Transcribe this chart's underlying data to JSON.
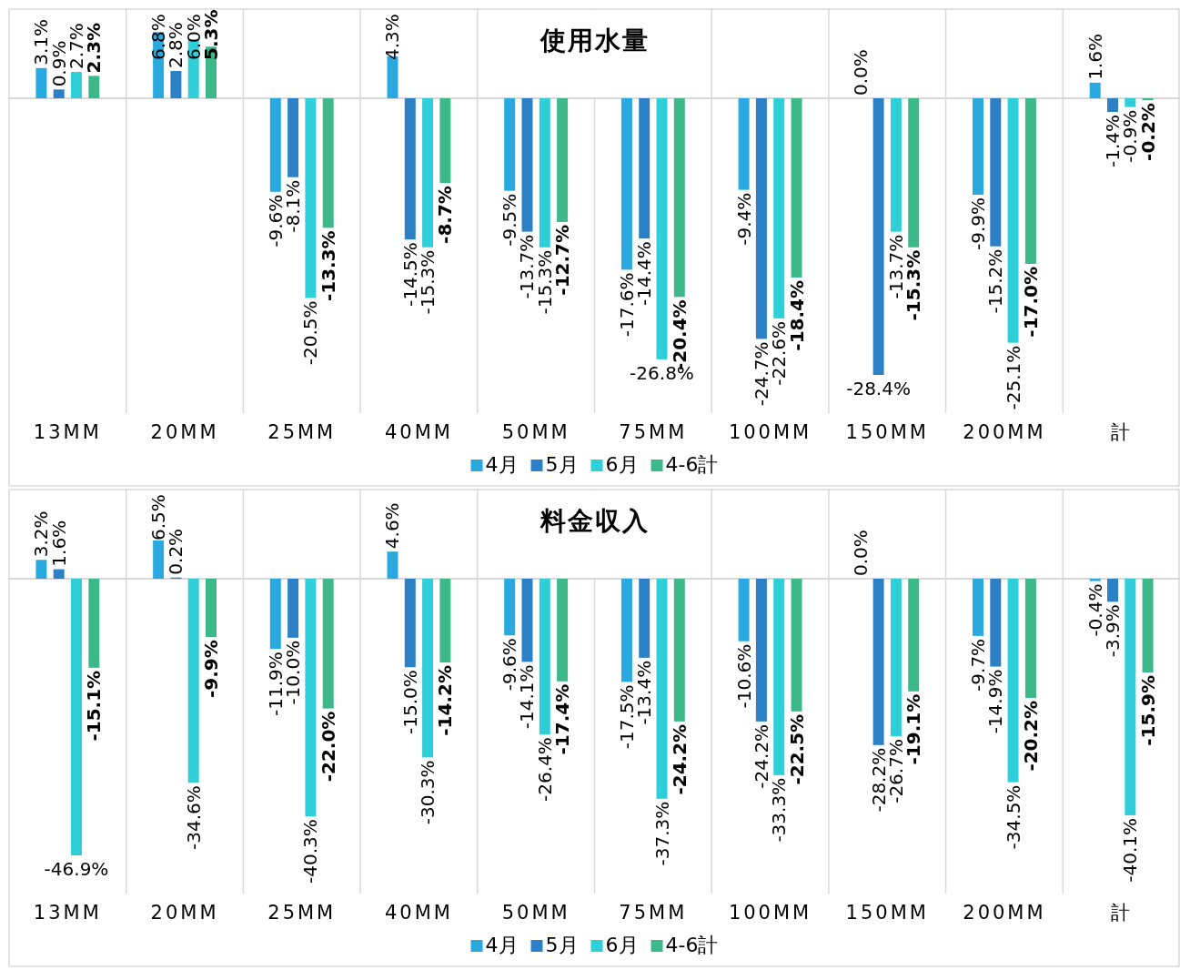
{
  "chart_data": [
    {
      "type": "bar",
      "title": "使用水量",
      "categories": [
        "13MM",
        "20MM",
        "25MM",
        "40MM",
        "50MM",
        "75MM",
        "100MM",
        "150MM",
        "200MM",
        "計"
      ],
      "legend": "bottom",
      "grid": "x",
      "data_labels": false,
      "series": [
        {
          "name": "4月",
          "color": "#29a9e0",
          "values": [
            3.1,
            6.8,
            -9.6,
            4.3,
            -9.5,
            -17.6,
            -9.4,
            0.0,
            -9.9,
            1.6
          ],
          "value_labels": [
            "3.1%",
            "6.8%",
            "-9.6%",
            "4.3%",
            "-9.5%",
            "-17.6%",
            "-9.4%",
            "0.0%",
            "-9.9%",
            "1.6%"
          ]
        },
        {
          "name": "5月",
          "color": "#2b80c6",
          "values": [
            0.9,
            2.8,
            -8.1,
            -14.5,
            -13.7,
            -14.4,
            -24.7,
            -28.4,
            -15.2,
            -1.4
          ],
          "value_labels": [
            "0.9%",
            "2.8%",
            "-8.1%",
            "-14.5%",
            "-13.7%",
            "-14.4%",
            "-24.7%",
            "-28.4%",
            "-15.2%",
            "-1.4%"
          ]
        },
        {
          "name": "6月",
          "color": "#2ecfd8",
          "values": [
            2.7,
            6.0,
            -20.5,
            -15.3,
            -15.3,
            -26.8,
            -22.6,
            -13.7,
            -25.1,
            -0.9
          ],
          "value_labels": [
            "2.7%",
            "6.0%",
            "-20.5%",
            "-15.3%",
            "-15.3%",
            "-26.8%",
            "-22.6%",
            "-13.7%",
            "-25.1%",
            "-0.9%"
          ]
        },
        {
          "name": "4-6計",
          "color": "#3db88a",
          "values": [
            2.3,
            5.3,
            -13.3,
            -8.7,
            -12.7,
            -20.4,
            -18.4,
            -15.3,
            -17.0,
            -0.2
          ],
          "value_labels": [
            "2.3%",
            "5.3%",
            "-13.3%",
            "-8.7%",
            "-12.7%",
            "-20.4%",
            "-18.4%",
            "-15.3%",
            "-17.0%",
            "-0.2%"
          ]
        }
      ]
    },
    {
      "type": "bar",
      "title": "料金収入",
      "categories": [
        "13MM",
        "20MM",
        "25MM",
        "40MM",
        "50MM",
        "75MM",
        "100MM",
        "150MM",
        "200MM",
        "計"
      ],
      "legend": "bottom",
      "grid": "x",
      "data_labels": false,
      "series": [
        {
          "name": "4月",
          "color": "#29a9e0",
          "values": [
            3.2,
            6.5,
            -11.9,
            4.6,
            -9.6,
            -17.5,
            -10.6,
            0.0,
            -9.7,
            -0.4
          ],
          "value_labels": [
            "3.2%",
            "6.5%",
            "-11.9%",
            "4.6%",
            "-9.6%",
            "-17.5%",
            "-10.6%",
            "0.0%",
            "-9.7%",
            "-0.4%"
          ]
        },
        {
          "name": "5月",
          "color": "#2b80c6",
          "values": [
            1.6,
            0.2,
            -10.0,
            -15.0,
            -14.1,
            -13.4,
            -24.2,
            -28.2,
            -14.9,
            -3.9
          ],
          "value_labels": [
            "1.6%",
            "0.2%",
            "-10.0%",
            "-15.0%",
            "-14.1%",
            "-13.4%",
            "-24.2%",
            "-28.2%",
            "-14.9%",
            "-3.9%"
          ]
        },
        {
          "name": "6月",
          "color": "#2ecfd8",
          "values": [
            -46.9,
            -34.6,
            -40.3,
            -30.3,
            -26.4,
            -37.3,
            -33.3,
            -26.7,
            -34.5,
            -40.1
          ],
          "value_labels": [
            "-46.9%",
            "-34.6%",
            "-40.3%",
            "-30.3%",
            "-26.4%",
            "-37.3%",
            "-33.3%",
            "-26.7%",
            "-34.5%",
            "-40.1%"
          ]
        },
        {
          "name": "4-6計",
          "color": "#3db88a",
          "values": [
            -15.1,
            -9.9,
            -22.0,
            -14.2,
            -17.4,
            -24.2,
            -22.5,
            -19.1,
            -20.2,
            -15.9
          ],
          "value_labels": [
            "-15.1%",
            "-9.9%",
            "-22.0%",
            "-14.2%",
            "-17.4%",
            "-24.2%",
            "-22.5%",
            "-19.1%",
            "-20.2%",
            "-15.9%"
          ]
        }
      ]
    }
  ]
}
